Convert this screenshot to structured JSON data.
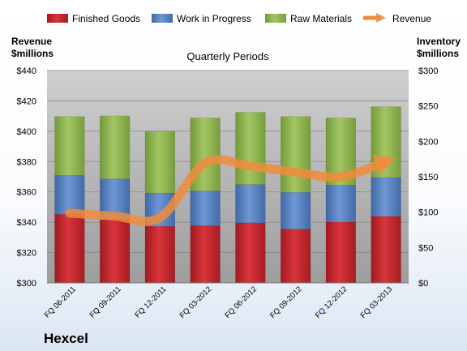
{
  "company": "Hexcel",
  "colors": {
    "finished_goods": "#c0272d",
    "work_in_progress": "#4f7bbf",
    "raw_materials": "#8cb148",
    "revenue": "#f08c3c",
    "plot_background": "#b3b3b3"
  },
  "chart_data": {
    "type": "bar",
    "stacked": true,
    "title": "Quarterly Periods",
    "categories": [
      "FQ 06-2011",
      "FQ 09-2011",
      "FQ 12-2011",
      "FQ 03-2012",
      "FQ 06-2012",
      "FQ 09-2012",
      "FQ 12-2012",
      "FQ 03-2013"
    ],
    "left_axis": {
      "label_line1": "Revenue",
      "label_line2": "$millions",
      "range": [
        300,
        440
      ],
      "ticks": [
        300,
        320,
        340,
        360,
        380,
        400,
        420,
        440
      ],
      "tick_labels": [
        "$300",
        "$320",
        "$340",
        "$360",
        "$380",
        "$400",
        "$420",
        "$440"
      ]
    },
    "right_axis": {
      "label_line1": "Inventory",
      "label_line2": "$millions",
      "range": [
        0,
        300
      ],
      "ticks": [
        0,
        50,
        100,
        150,
        200,
        250,
        300
      ],
      "tick_labels": [
        "$0",
        "$50",
        "$100",
        "$150",
        "$200",
        "$250",
        "$300"
      ]
    },
    "series": [
      {
        "name": "Finished Goods",
        "axis": "right",
        "values": [
          97,
          90,
          80,
          81,
          85,
          76,
          86,
          94
        ]
      },
      {
        "name": "Work in Progress",
        "axis": "right",
        "values": [
          55,
          57,
          47,
          49,
          54,
          52,
          52,
          55
        ]
      },
      {
        "name": "Raw Materials",
        "axis": "right",
        "values": [
          83,
          89,
          87,
          103,
          102,
          107,
          95,
          100
        ]
      },
      {
        "name": "Revenue",
        "axis": "left",
        "type": "line",
        "values": [
          346,
          344,
          343,
          379,
          377,
          373,
          370,
          380
        ]
      }
    ],
    "legend_position": "top",
    "grid": true
  }
}
